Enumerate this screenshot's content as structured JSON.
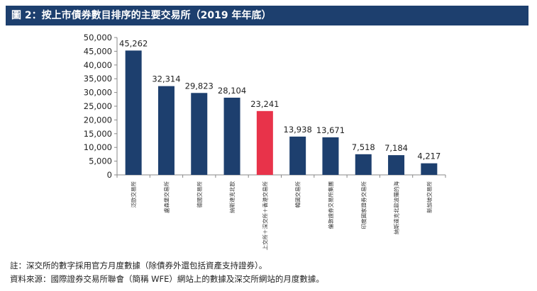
{
  "header": {
    "title": "圖 2：按上市債券數目排序的主要交易所（2019 年年底）"
  },
  "chart_data": {
    "type": "bar",
    "title": "按上市債券數目排序的主要交易所（2019 年年底）",
    "xlabel": "",
    "ylabel": "",
    "ylim": [
      0,
      50000
    ],
    "yticks": [
      0,
      5000,
      10000,
      15000,
      20000,
      25000,
      30000,
      35000,
      40000,
      45000,
      50000
    ],
    "ytick_labels": [
      "0",
      "5,000",
      "10,000",
      "15,000",
      "20,000",
      "25,000",
      "30,000",
      "35,000",
      "40,000",
      "45,000",
      "50,000"
    ],
    "categories": [
      "泛歐交易所",
      "盧森堡交易所",
      "德國交易所",
      "納斯達克北歐",
      "上交所＋深交所＋香港交易所",
      "韓國交易所",
      "倫敦證券交易所集團",
      "印度國家證券交易所",
      "納斯達克北歐波羅的海",
      "新加坡交易所"
    ],
    "values": [
      45262,
      32314,
      29823,
      28104,
      23241,
      13938,
      13671,
      7518,
      7184,
      4217
    ],
    "value_labels": [
      "45,262",
      "32,314",
      "29,823",
      "28,104",
      "23,241",
      "13,938",
      "13,671",
      "7,518",
      "7,184",
      "4,217"
    ],
    "highlight_index": 4,
    "colors": {
      "bar": "#1d3f6e",
      "highlight": "#e8334a",
      "axis": "#888888"
    },
    "legend": "none",
    "grid": false
  },
  "notes": {
    "note": "註：深交所的數字採用官方月度數據（除債券外還包括資產支持證券）。",
    "source": "資料來源：國際證券交易所聯會（簡稱 WFE）網站上的數據及深交所網站的月度數據。"
  }
}
